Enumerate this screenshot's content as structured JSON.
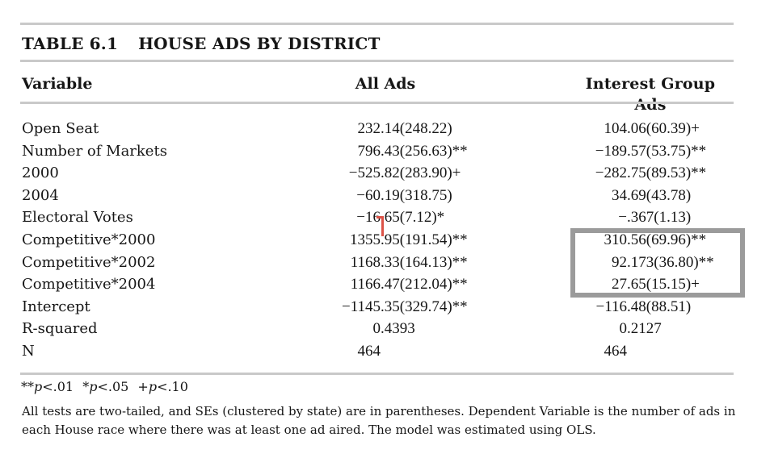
{
  "page": {
    "background": "#ffffff",
    "text_color": "#161616",
    "rule_color": "#c9c9c9"
  },
  "table": {
    "label": "TABLE 6.1",
    "title": "HOUSE ADS BY DISTRICT",
    "columns": [
      "Variable",
      "All Ads",
      "Interest Group Ads"
    ],
    "rows": [
      {
        "variable": "Open Seat",
        "all_ads": "232.14(248.22)",
        "interest_group_ads": "104.06(60.39)+"
      },
      {
        "variable": "Number of Markets",
        "all_ads": "796.43(256.63)**",
        "interest_group_ads": "−189.57(53.75)**"
      },
      {
        "variable": "2000",
        "all_ads": "−525.82(283.90)+",
        "interest_group_ads": "−282.75(89.53)**"
      },
      {
        "variable": "2004",
        "all_ads": "−60.19(318.75)",
        "interest_group_ads": "34.69(43.78)"
      },
      {
        "variable": "Electoral Votes",
        "all_ads": "−16.65(7.12)*",
        "interest_group_ads": "−.367(1.13)"
      },
      {
        "variable": "Competitive*2000",
        "all_ads": "1355.95(191.54)**",
        "interest_group_ads": "310.56(69.96)**"
      },
      {
        "variable": "Competitive*2002",
        "all_ads": "1168.33(164.13)**",
        "interest_group_ads": "92.173(36.80)**"
      },
      {
        "variable": "Competitive*2004",
        "all_ads": "1166.47(212.04)**",
        "interest_group_ads": "27.65(15.15)+"
      },
      {
        "variable": "Intercept",
        "all_ads": "−1145.35(329.74)**",
        "interest_group_ads": "−116.48(88.51)"
      },
      {
        "variable": "R-squared",
        "all_ads": "0.4393",
        "interest_group_ads": "0.2127"
      },
      {
        "variable": "N",
        "all_ads": "464",
        "interest_group_ads": "464"
      }
    ]
  },
  "annotations": {
    "highlight_box": {
      "color": "#9b9b9b"
    },
    "caret": {
      "color": "#dc5247"
    }
  },
  "footnotes": {
    "significance": [
      {
        "marker": "**",
        "p": "p",
        "threshold": "<.01"
      },
      {
        "marker": "*",
        "p": "p",
        "threshold": "<.05"
      },
      {
        "marker": "+",
        "p": "p",
        "threshold": "<.10"
      }
    ],
    "notes": [
      "All tests are two-tailed, and SEs (clustered by state) are in parentheses. Dependent Variable is the number of ads in",
      "each House race where there was at least one ad aired. The model was estimated using OLS."
    ]
  }
}
